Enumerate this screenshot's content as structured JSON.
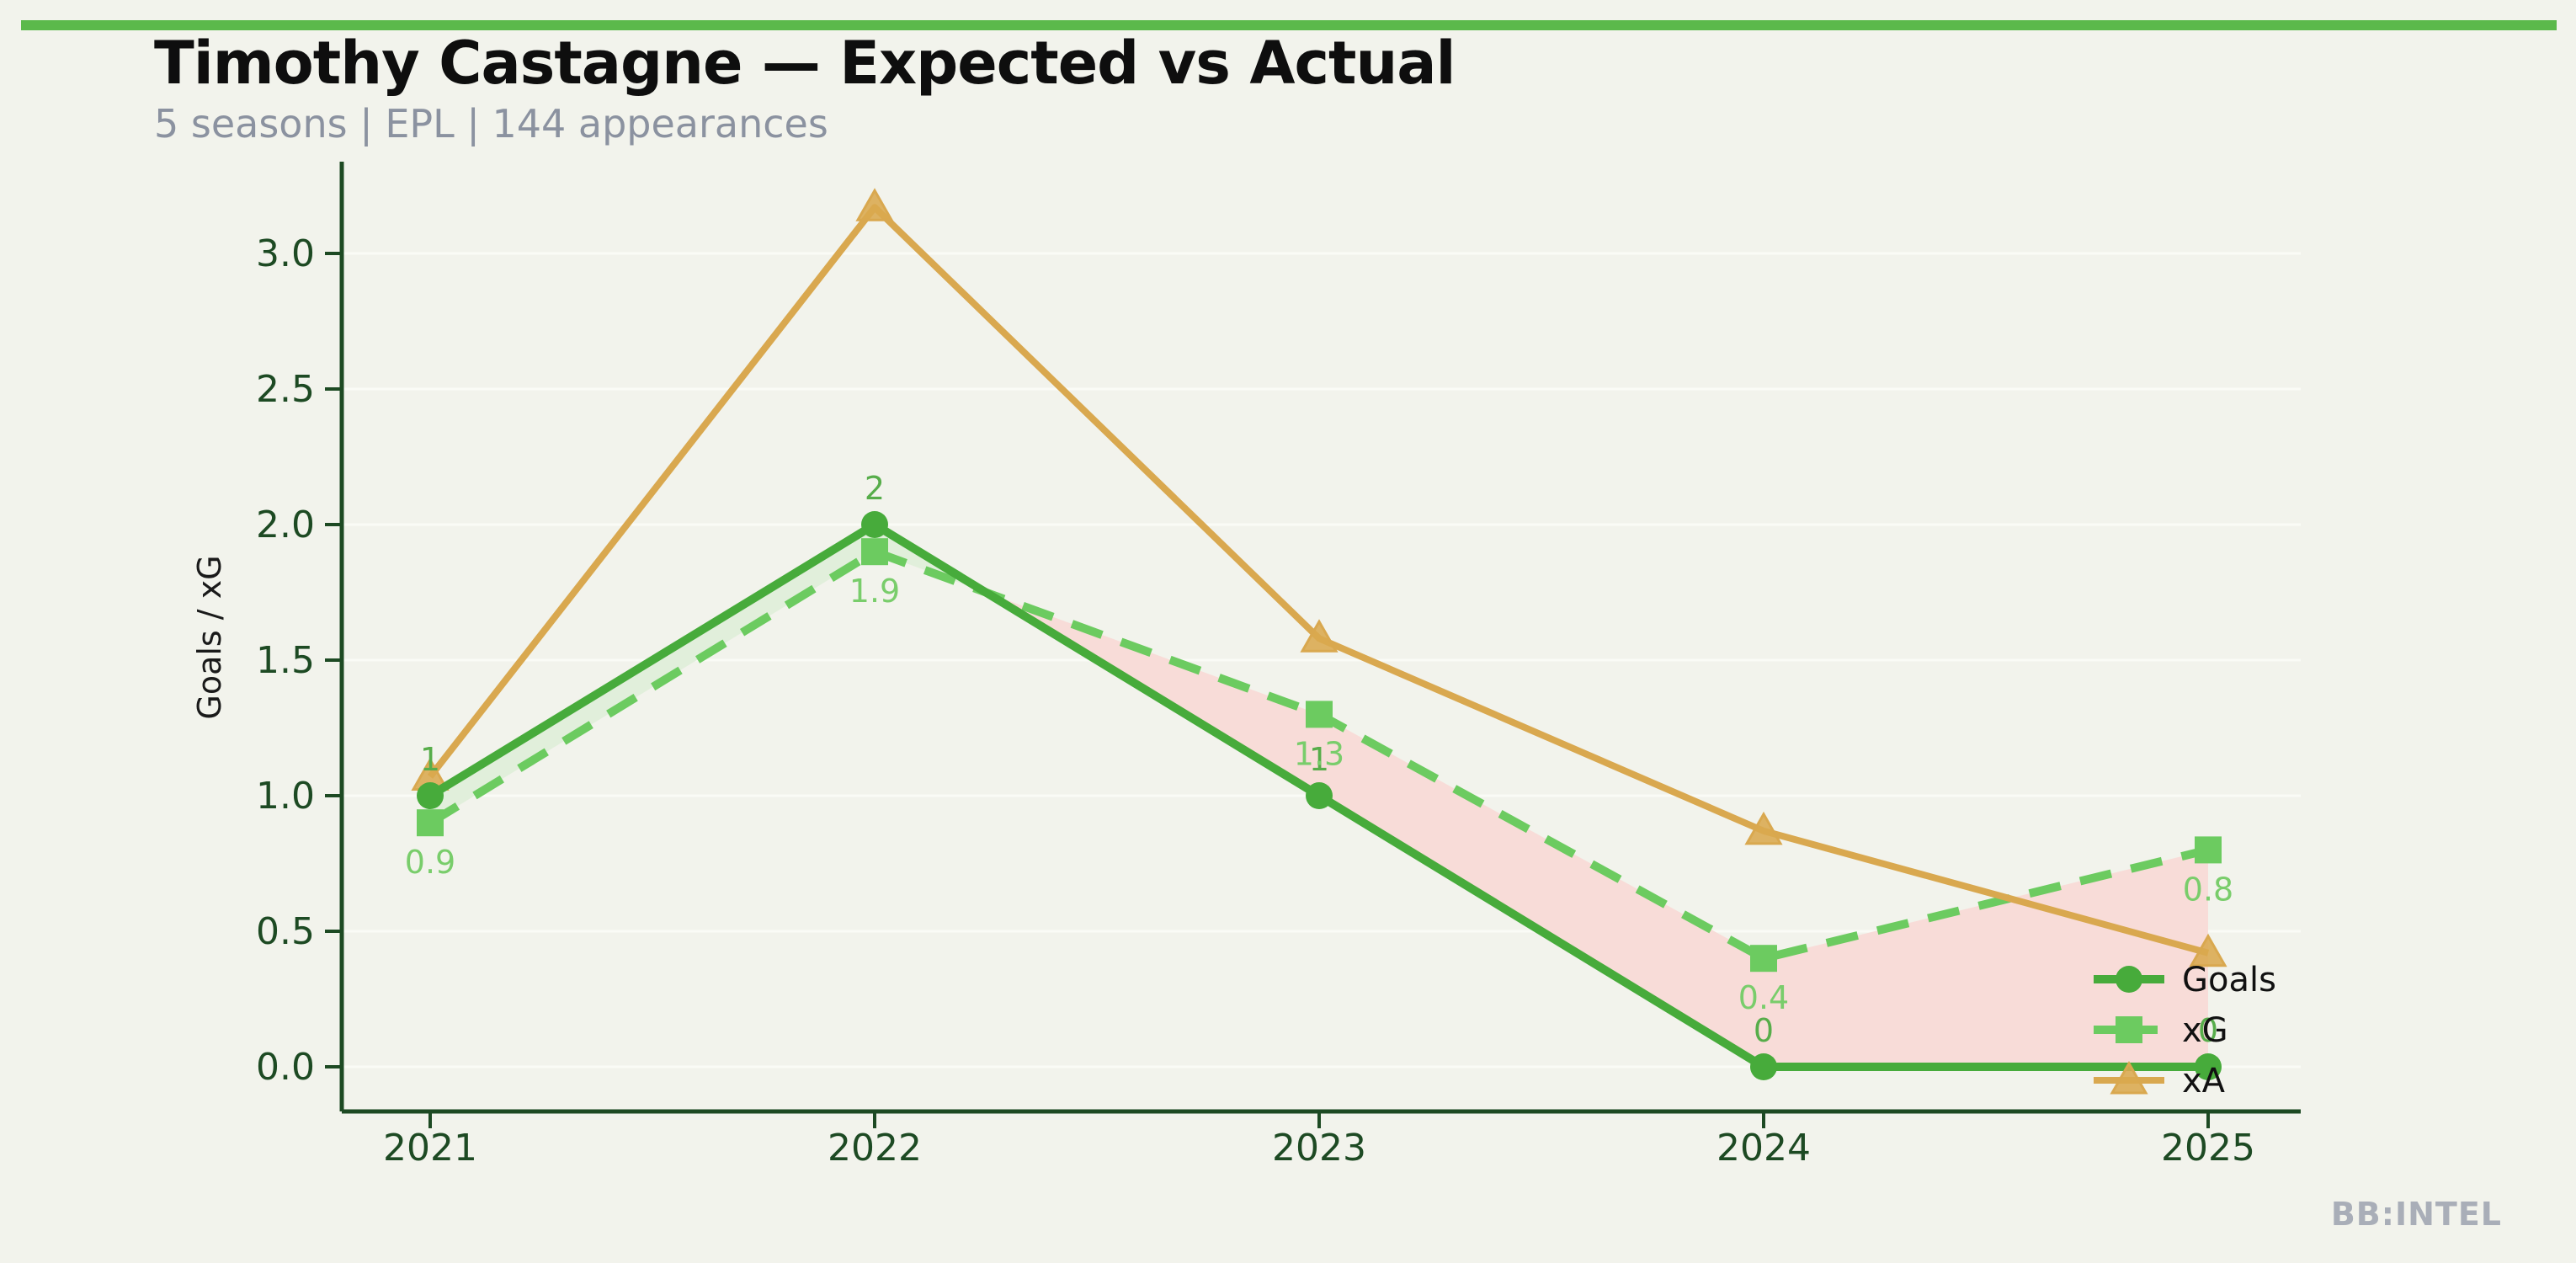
{
  "header": {
    "title": "Timothy Castagne — Expected vs Actual",
    "subtitle": "5 seasons | EPL | 144 appearances"
  },
  "footer": {
    "watermark": "BB:INTEL"
  },
  "colors": {
    "background": "#f2f3ec",
    "top_bar": "#5bb94b",
    "title": "#0e0e0e",
    "subtitle": "#8b92a0",
    "axis": "#1d4a23",
    "axis_label": "#1a1a1a",
    "gridline": "#fafbf6",
    "goals": "#47ab3b",
    "xg": "#6ccb60",
    "xa": "#d9a84f",
    "goals_value_label": "#57ad4a",
    "xg_value_label": "#79cd6b",
    "overperform_fill": "#e1efdb",
    "underperform_fill": "#f8dcd8",
    "legend_text": "#111111",
    "watermark": "#a9aeb8"
  },
  "chart_data": {
    "type": "line",
    "title": "Timothy Castagne — Expected vs Actual",
    "subtitle": "5 seasons | EPL | 144 appearances",
    "x": [
      2021,
      2022,
      2023,
      2024,
      2025
    ],
    "xtick_labels": [
      "2021",
      "2022",
      "2023",
      "2024",
      "2025"
    ],
    "ylabel": "Goals / xG",
    "xlabel": "",
    "yticks": [
      0.0,
      0.5,
      1.0,
      1.5,
      2.0,
      2.5,
      3.0
    ],
    "ytick_labels": [
      "0.0",
      "0.5",
      "1.0",
      "1.5",
      "2.0",
      "2.5",
      "3.0"
    ],
    "ylim": [
      0,
      3.34
    ],
    "grid": "horizontal-faint",
    "fill_between": "Goals vs xG (green where Goals > xG, pink where xG > Goals)",
    "legend_position": "lower right",
    "series": [
      {
        "name": "Goals",
        "marker": "circle",
        "line_style": "solid",
        "values": [
          1,
          2,
          1,
          0,
          0
        ],
        "point_labels": [
          "1",
          "2",
          "1",
          "0",
          "0"
        ]
      },
      {
        "name": "xG",
        "marker": "square",
        "line_style": "dashed",
        "values": [
          0.9,
          1.9,
          1.3,
          0.4,
          0.8
        ],
        "point_labels": [
          "0.9",
          "1.9",
          "1.3",
          "0.4",
          "0.8"
        ]
      },
      {
        "name": "xA",
        "marker": "triangle",
        "line_style": "solid",
        "values": [
          1.07,
          3.17,
          1.58,
          0.87,
          0.42
        ],
        "point_labels": null
      }
    ]
  }
}
